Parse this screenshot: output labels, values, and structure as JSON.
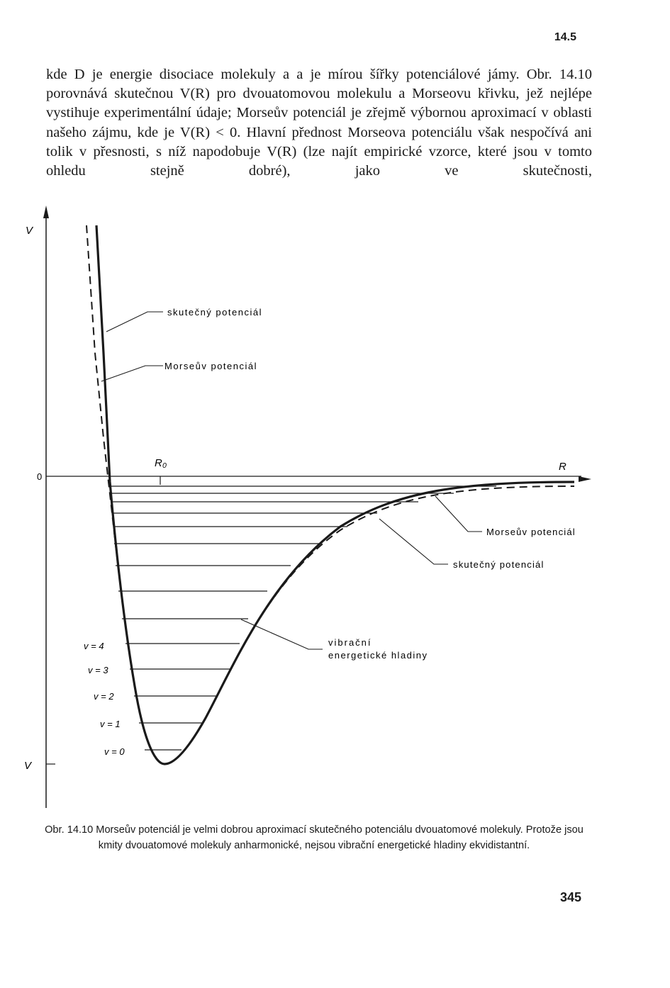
{
  "header": {
    "section_number": "14.5"
  },
  "body_text": "kde D je energie disociace molekuly a a je mírou šířky potenciálové jámy. Obr. 14.10 porovnává skutečnou V(R) pro dvouatomovou molekulu a Morseovu křivku, jež nejlépe vystihuje experimentální údaje; Morseův potenciál je zřejmě výbornou aproximací v oblasti našeho zájmu, kde je V(R) < 0. Hlavní přednost Morseova potenciálu však nespočívá ani tolik v přesnosti, s níž napodobuje V(R) (lze najít empirické vzorce, které jsou v tomto ohledu stejně dobré), jako ve skutečnosti,",
  "figure": {
    "y_axis_label": "V",
    "zero_label": "0",
    "bottom_label": "V",
    "x_axis_label": "R",
    "r0_label": "R₀",
    "callouts": {
      "actual_upper": "skutečný potenciál",
      "morse_upper": "Morseův potenciál",
      "morse_lower": "Morseův potenciál",
      "actual_lower": "skutečný potenciál",
      "levels_line1": "vibrační",
      "levels_line2": "energetické hladiny"
    },
    "level_labels": [
      "v = 4",
      "v = 3",
      "v = 2",
      "v = 1",
      "v = 0"
    ]
  },
  "caption": "Obr. 14.10 Morseův potenciál je velmi dobrou aproximací skutečného potenciálu dvouatomové molekuly. Protože jsou kmity dvouatomové molekuly anharmonické, nejsou vibrační energetické hladiny ekvidistantní.",
  "footer": {
    "page_number": "345"
  }
}
